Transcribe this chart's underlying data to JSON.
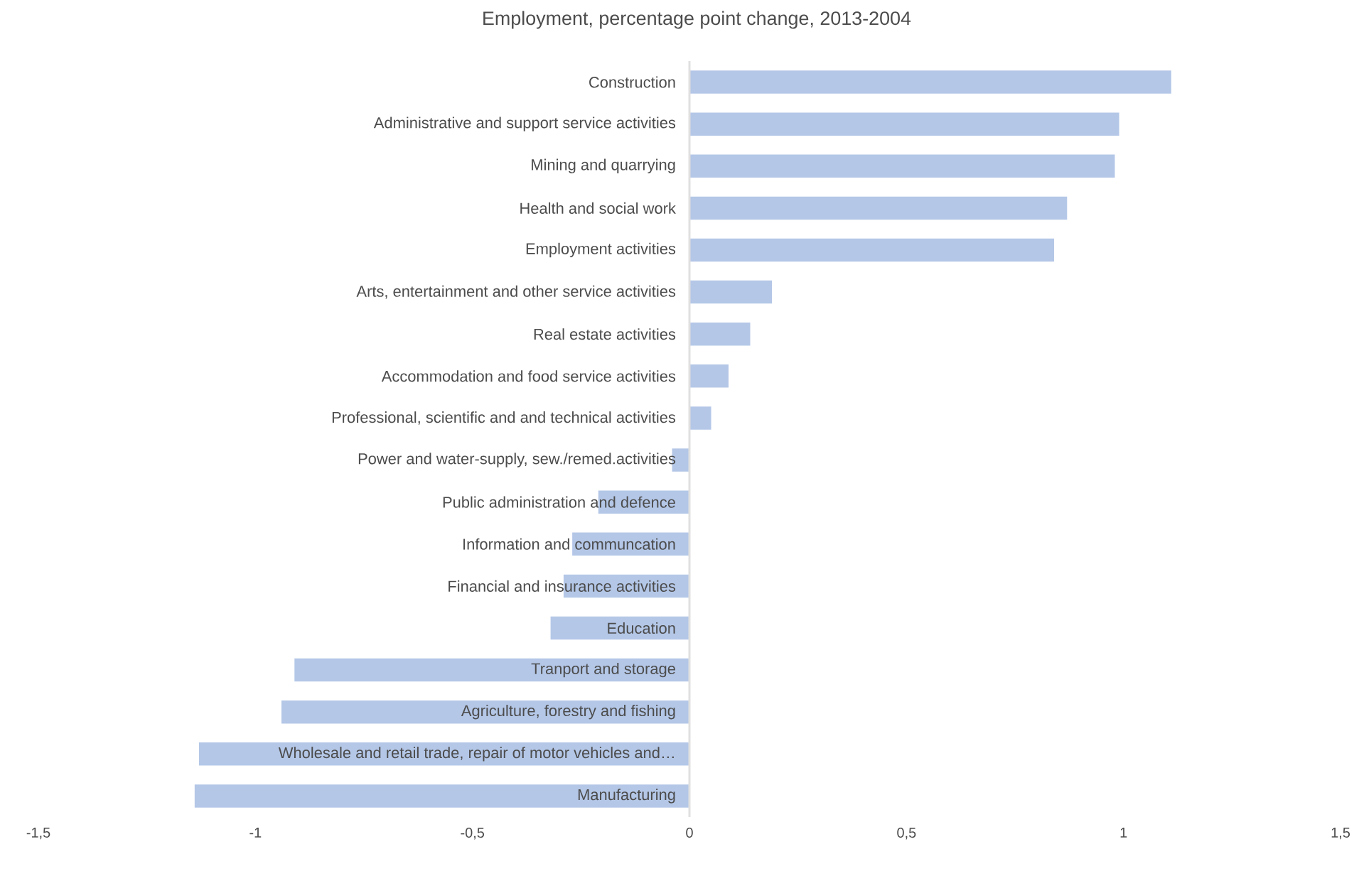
{
  "chart_data": {
    "type": "bar",
    "orientation": "horizontal",
    "title": "Employment, percentage point change, 2013-2004",
    "categories": [
      "Construction",
      "Administrative and support service activities",
      "Mining and quarrying",
      "Health and social work",
      "Employment activities",
      "Arts, entertainment and other service activities",
      "Real estate activities",
      "Accommodation and food service activities",
      "Professional, scientific and and technical activities",
      "Power and water-supply, sew./remed.activities",
      "Public administration and defence",
      "Information and communcation",
      "Financial and insurance activities",
      "Education",
      "Tranport and storage",
      "Agriculture, forestry and fishing",
      "Wholesale and retail trade, repair of motor vehicles and…",
      "Manufacturing"
    ],
    "values": [
      1.11,
      0.99,
      0.98,
      0.87,
      0.84,
      0.19,
      0.14,
      0.09,
      0.05,
      -0.04,
      -0.21,
      -0.27,
      -0.29,
      -0.32,
      -0.91,
      -0.94,
      -1.13,
      -1.14
    ],
    "color": "#b4c7e7",
    "xlim": [
      -1.5,
      1.5
    ],
    "xticks": [
      {
        "value": -1.5,
        "label": "-1,5"
      },
      -1,
      {
        "value": -0.5,
        "label": "-0,5"
      },
      0,
      {
        "value": 0.5,
        "label": "0,5"
      },
      1,
      {
        "value": 1.5,
        "label": "1,5"
      }
    ],
    "grid": false
  }
}
